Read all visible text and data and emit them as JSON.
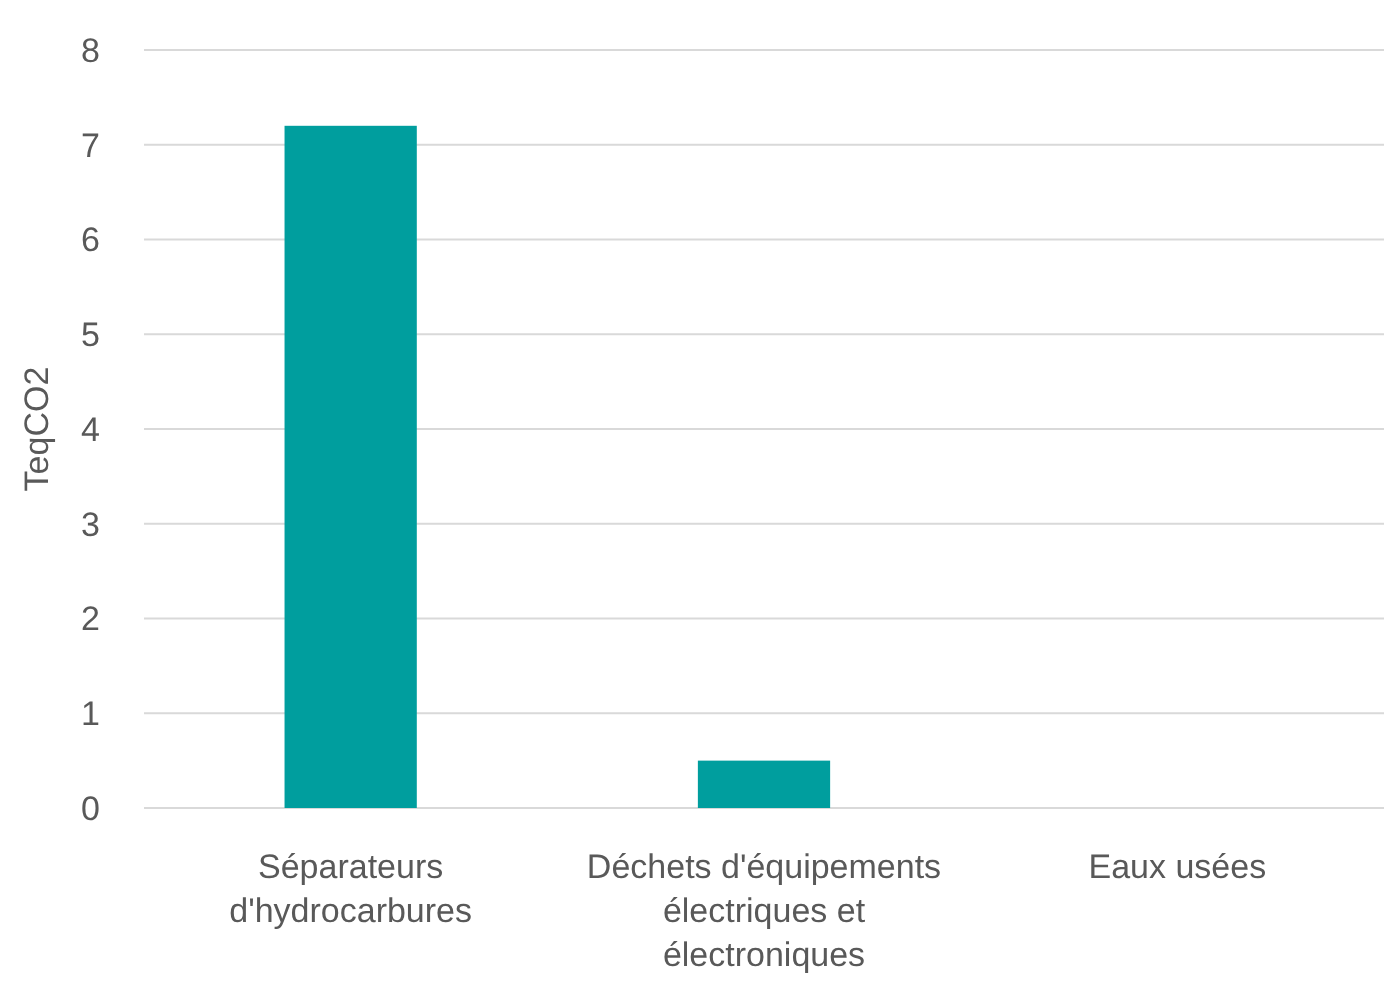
{
  "chart_data": {
    "type": "bar",
    "ylabel": "TeqCO2",
    "categories": [
      "Séparateurs d'hydrocarbures",
      "Déchets d'équipements électriques et électroniques",
      "Eaux usées"
    ],
    "values": [
      7.2,
      0.5,
      0
    ],
    "color": "#009e9e",
    "ylim": [
      0,
      8
    ],
    "yticks": [
      0,
      1,
      2,
      3,
      4,
      5,
      6,
      7,
      8
    ],
    "grid": "y"
  }
}
